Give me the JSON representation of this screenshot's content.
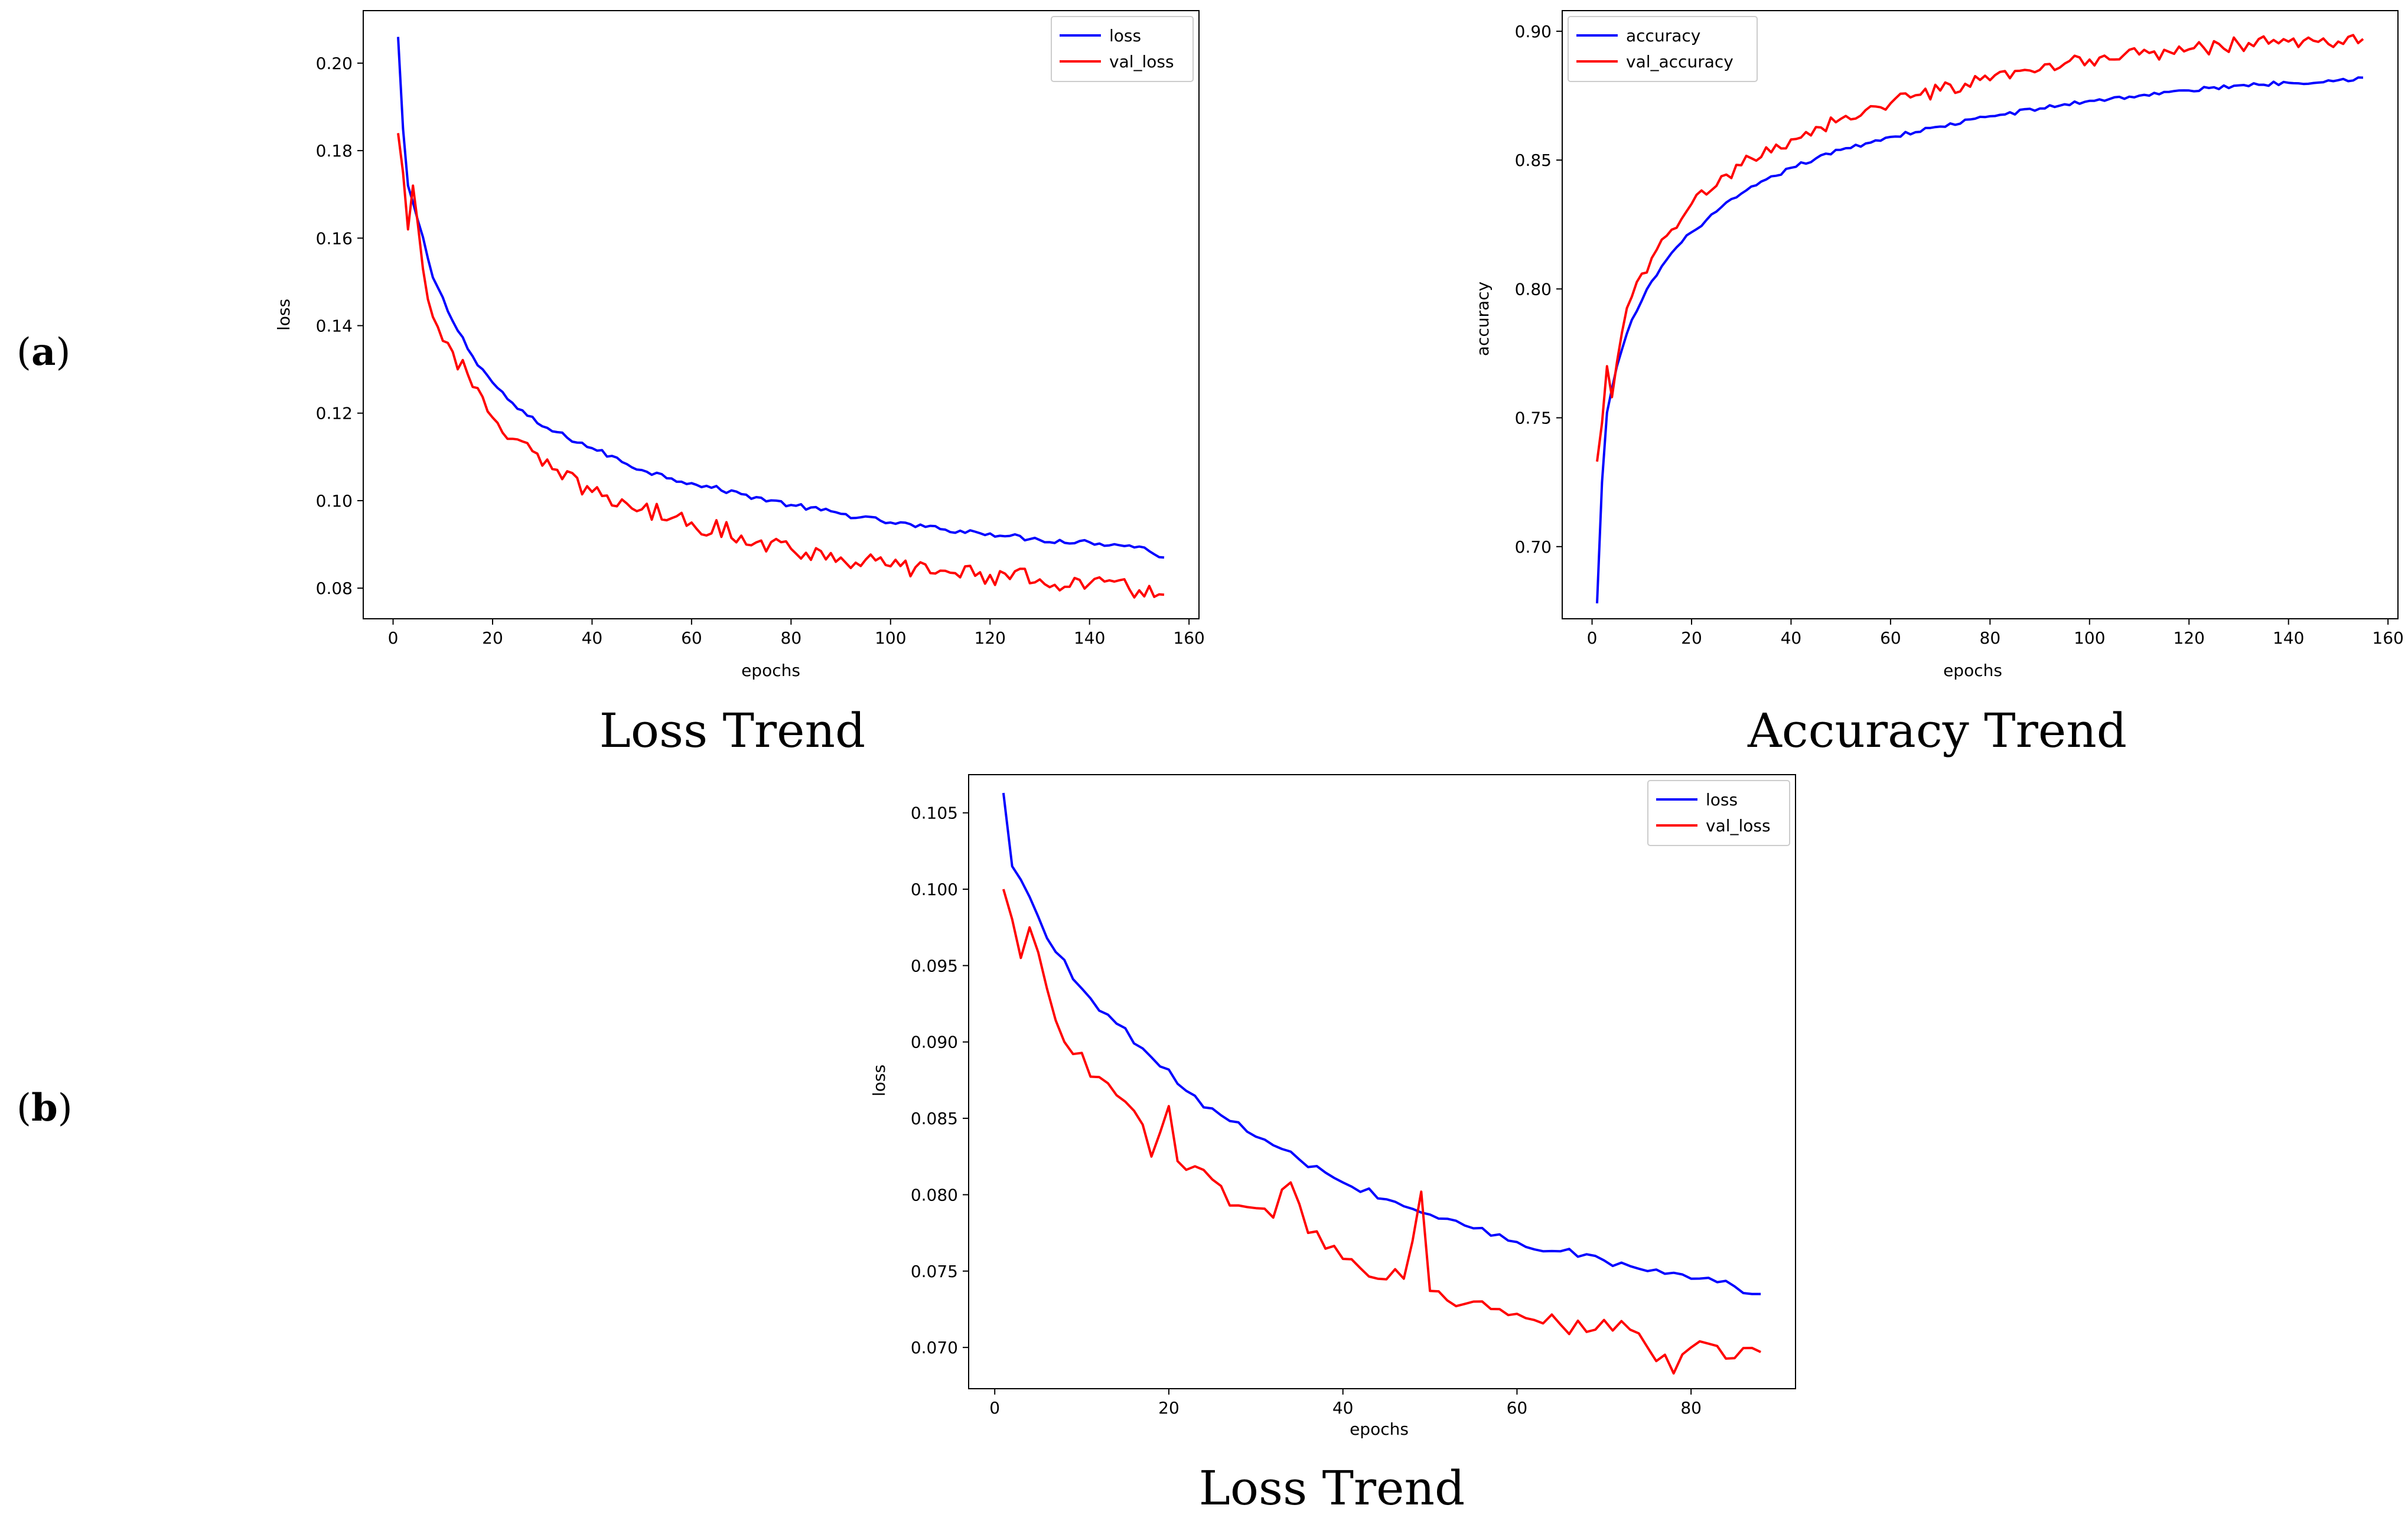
{
  "panel_labels": {
    "a": {
      "open": "(",
      "letter": "a",
      "close": ")"
    },
    "b": {
      "open": "(",
      "letter": "b",
      "close": ")"
    }
  },
  "chart_data": [
    {
      "id": "a-loss",
      "type": "line",
      "title": "",
      "caption": "Loss Trend",
      "xlabel": "epochs",
      "ylabel": "loss",
      "xlim": [
        -6,
        162
      ],
      "ylim": [
        0.073,
        0.212
      ],
      "xticks": [
        0,
        20,
        40,
        60,
        80,
        100,
        120,
        140,
        160
      ],
      "yticks": [
        0.08,
        0.1,
        0.12,
        0.14,
        0.16,
        0.18,
        0.2
      ],
      "ytick_labels": [
        "0.08",
        "0.10",
        "0.12",
        "0.14",
        "0.16",
        "0.18",
        "0.20"
      ],
      "xrange": [
        1,
        155
      ],
      "legend": "top-right",
      "grid": false,
      "series": [
        {
          "name": "loss",
          "color": "#0000ff",
          "anchors": [
            [
              1,
              0.206
            ],
            [
              2,
              0.185
            ],
            [
              3,
              0.172
            ],
            [
              5,
              0.164
            ],
            [
              8,
              0.151
            ],
            [
              12,
              0.141
            ],
            [
              16,
              0.133
            ],
            [
              20,
              0.127
            ],
            [
              25,
              0.121
            ],
            [
              30,
              0.117
            ],
            [
              40,
              0.112
            ],
            [
              50,
              0.107
            ],
            [
              60,
              0.104
            ],
            [
              70,
              0.1015
            ],
            [
              80,
              0.099
            ],
            [
              90,
              0.097
            ],
            [
              100,
              0.095
            ],
            [
              110,
              0.0935
            ],
            [
              120,
              0.0925
            ],
            [
              130,
              0.091
            ],
            [
              140,
              0.0905
            ],
            [
              150,
              0.0895
            ],
            [
              155,
              0.087
            ]
          ],
          "noise": 0.0006
        },
        {
          "name": "val_loss",
          "color": "#ff0000",
          "anchors": [
            [
              1,
              0.184
            ],
            [
              2,
              0.175
            ],
            [
              3,
              0.162
            ],
            [
              4,
              0.172
            ],
            [
              6,
              0.153
            ],
            [
              8,
              0.142
            ],
            [
              12,
              0.134
            ],
            [
              16,
              0.126
            ],
            [
              20,
              0.119
            ],
            [
              25,
              0.114
            ],
            [
              30,
              0.108
            ],
            [
              40,
              0.102
            ],
            [
              50,
              0.098
            ],
            [
              60,
              0.095
            ],
            [
              70,
              0.092
            ],
            [
              80,
              0.089
            ],
            [
              90,
              0.087
            ],
            [
              100,
              0.085
            ],
            [
              110,
              0.084
            ],
            [
              120,
              0.083
            ],
            [
              130,
              0.082
            ],
            [
              140,
              0.081
            ],
            [
              150,
              0.0795
            ],
            [
              155,
              0.0785
            ]
          ],
          "noise": 0.0022
        }
      ]
    },
    {
      "id": "a-acc",
      "type": "line",
      "title": "",
      "caption": "Accuracy Trend",
      "xlabel": "epochs",
      "ylabel": "accuracy",
      "xlim": [
        -6,
        162
      ],
      "ylim": [
        0.672,
        0.908
      ],
      "xticks": [
        0,
        20,
        40,
        60,
        80,
        100,
        120,
        140,
        160
      ],
      "yticks": [
        0.7,
        0.75,
        0.8,
        0.85,
        0.9
      ],
      "ytick_labels": [
        "0.70",
        "0.75",
        "0.80",
        "0.85",
        "0.90"
      ],
      "xrange": [
        1,
        155
      ],
      "legend": "top-left",
      "grid": false,
      "series": [
        {
          "name": "accuracy",
          "color": "#0000ff",
          "anchors": [
            [
              1,
              0.678
            ],
            [
              2,
              0.725
            ],
            [
              3,
              0.752
            ],
            [
              5,
              0.77
            ],
            [
              8,
              0.788
            ],
            [
              12,
              0.803
            ],
            [
              16,
              0.814
            ],
            [
              20,
              0.822
            ],
            [
              25,
              0.83
            ],
            [
              30,
              0.837
            ],
            [
              40,
              0.847
            ],
            [
              50,
              0.854
            ],
            [
              60,
              0.859
            ],
            [
              70,
              0.863
            ],
            [
              80,
              0.867
            ],
            [
              90,
              0.87
            ],
            [
              100,
              0.873
            ],
            [
              110,
              0.875
            ],
            [
              120,
              0.877
            ],
            [
              130,
              0.879
            ],
            [
              140,
              0.88
            ],
            [
              150,
              0.881
            ],
            [
              155,
              0.882
            ]
          ],
          "noise": 0.0008
        },
        {
          "name": "val_accuracy",
          "color": "#ff0000",
          "anchors": [
            [
              1,
              0.733
            ],
            [
              2,
              0.748
            ],
            [
              3,
              0.77
            ],
            [
              4,
              0.758
            ],
            [
              6,
              0.783
            ],
            [
              8,
              0.797
            ],
            [
              12,
              0.812
            ],
            [
              16,
              0.823
            ],
            [
              20,
              0.833
            ],
            [
              25,
              0.84
            ],
            [
              30,
              0.848
            ],
            [
              40,
              0.858
            ],
            [
              50,
              0.866
            ],
            [
              60,
              0.872
            ],
            [
              70,
              0.877
            ],
            [
              80,
              0.881
            ],
            [
              90,
              0.885
            ],
            [
              100,
              0.889
            ],
            [
              110,
              0.891
            ],
            [
              120,
              0.893
            ],
            [
              130,
              0.895
            ],
            [
              140,
              0.896
            ],
            [
              150,
              0.896
            ],
            [
              155,
              0.897
            ]
          ],
          "noise": 0.0028
        }
      ]
    },
    {
      "id": "b-loss",
      "type": "line",
      "title": "",
      "caption": "Loss Trend",
      "xlabel": "epochs",
      "ylabel": "loss",
      "xlim": [
        -3,
        92
      ],
      "ylim": [
        0.0673,
        0.1075
      ],
      "xticks": [
        0,
        20,
        40,
        60,
        80
      ],
      "yticks": [
        0.07,
        0.075,
        0.08,
        0.085,
        0.09,
        0.095,
        0.1,
        0.105
      ],
      "ytick_labels": [
        "0.070",
        "0.075",
        "0.080",
        "0.085",
        "0.090",
        "0.095",
        "0.100",
        "0.105"
      ],
      "xrange": [
        1,
        88
      ],
      "legend": "top-right",
      "grid": false,
      "series": [
        {
          "name": "loss",
          "color": "#0000ff",
          "anchors": [
            [
              1,
              0.1063
            ],
            [
              2,
              0.1015
            ],
            [
              4,
              0.0995
            ],
            [
              6,
              0.0968
            ],
            [
              10,
              0.0935
            ],
            [
              14,
              0.0912
            ],
            [
              18,
              0.089
            ],
            [
              22,
              0.0868
            ],
            [
              26,
              0.0852
            ],
            [
              30,
              0.0838
            ],
            [
              35,
              0.0823
            ],
            [
              40,
              0.0808
            ],
            [
              45,
              0.0797
            ],
            [
              50,
              0.0787
            ],
            [
              55,
              0.0778
            ],
            [
              60,
              0.0769
            ],
            [
              65,
              0.0763
            ],
            [
              70,
              0.0757
            ],
            [
              75,
              0.075
            ],
            [
              80,
              0.0745
            ],
            [
              85,
              0.074
            ],
            [
              88,
              0.0735
            ]
          ],
          "noise": 0.0003
        },
        {
          "name": "val_loss",
          "color": "#ff0000",
          "anchors": [
            [
              1,
              0.1
            ],
            [
              3,
              0.0955
            ],
            [
              4,
              0.0975
            ],
            [
              6,
              0.0935
            ],
            [
              8,
              0.09
            ],
            [
              12,
              0.0877
            ],
            [
              16,
              0.0855
            ],
            [
              18,
              0.0825
            ],
            [
              20,
              0.0858
            ],
            [
              21,
              0.0822
            ],
            [
              25,
              0.081
            ],
            [
              28,
              0.0793
            ],
            [
              32,
              0.0785
            ],
            [
              34,
              0.0808
            ],
            [
              36,
              0.0775
            ],
            [
              40,
              0.0758
            ],
            [
              44,
              0.0745
            ],
            [
              47,
              0.0745
            ],
            [
              49,
              0.0802
            ],
            [
              50,
              0.0737
            ],
            [
              55,
              0.073
            ],
            [
              60,
              0.0722
            ],
            [
              65,
              0.0715
            ],
            [
              70,
              0.0718
            ],
            [
              75,
              0.07
            ],
            [
              78,
              0.0683
            ],
            [
              80,
              0.07
            ],
            [
              85,
              0.0693
            ],
            [
              88,
              0.0697
            ]
          ],
          "noise": 0.0007
        }
      ]
    }
  ]
}
